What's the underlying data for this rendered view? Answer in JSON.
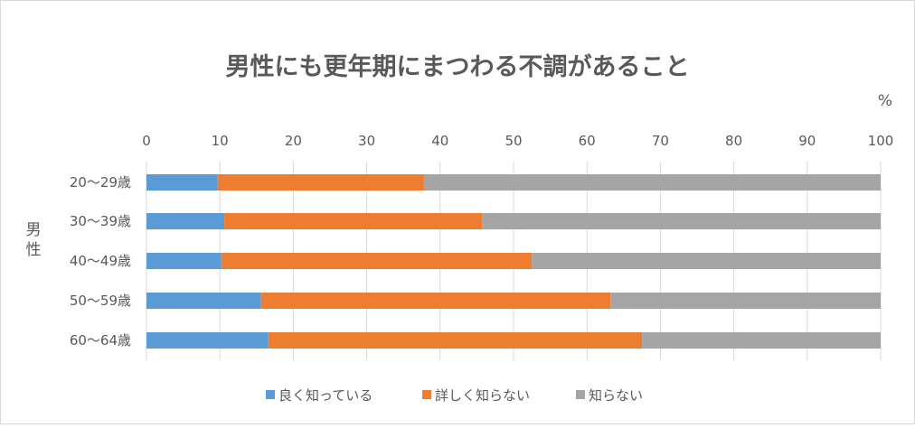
{
  "chart_data": {
    "type": "bar",
    "orientation": "horizontal",
    "stacked": true,
    "title": "男性にも更年期にまつわる不調があること",
    "unit_label": "%",
    "group_label": "男性",
    "xlim": [
      0,
      100
    ],
    "x_ticks": [
      "0",
      "10",
      "20",
      "30",
      "40",
      "50",
      "60",
      "70",
      "80",
      "90",
      "100"
    ],
    "categories": [
      "20～29歳",
      "30～39歳",
      "40～49歳",
      "50～59歳",
      "60～64歳"
    ],
    "series": [
      {
        "name": "良く知っている",
        "color": "#5b9bd5",
        "values": [
          9.7,
          10.6,
          10.2,
          15.6,
          16.6
        ]
      },
      {
        "name": "詳しく知らない",
        "color": "#ed7d31",
        "values": [
          28.1,
          35.1,
          42.3,
          47.6,
          50.9
        ]
      },
      {
        "name": "知らない",
        "color": "#a5a5a5",
        "values": [
          62.2,
          54.3,
          47.5,
          36.8,
          32.5
        ]
      }
    ],
    "gridlines": true,
    "legend_position": "bottom"
  }
}
